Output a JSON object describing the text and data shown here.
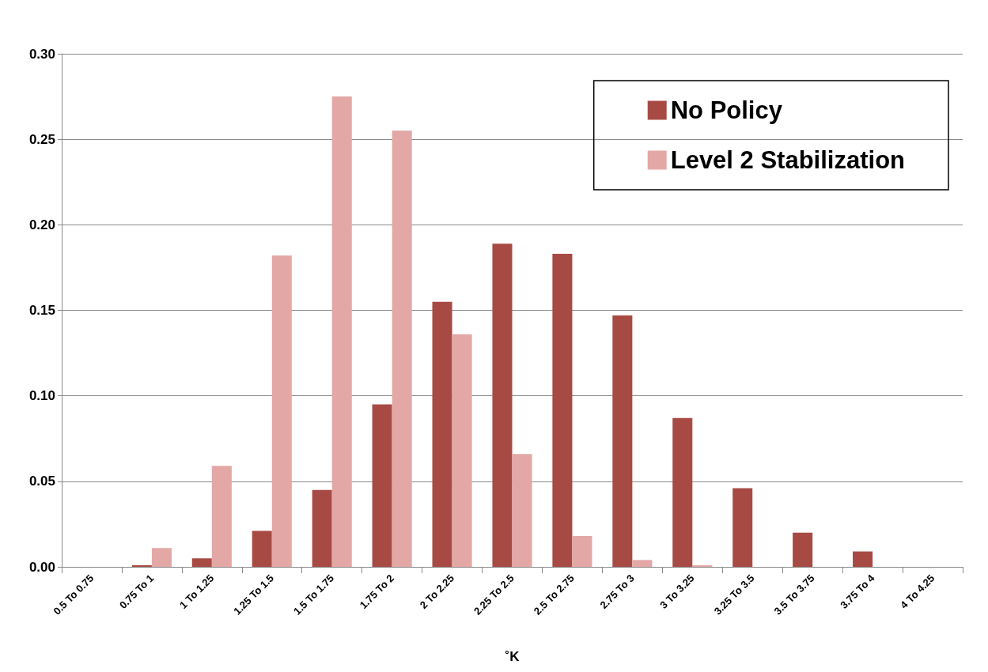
{
  "chart_data": {
    "type": "bar",
    "xlabel": "˚K",
    "categories": [
      "0.5 To 0.75",
      "0.75 To 1",
      "1 To 1.25",
      "1.25 To 1.5",
      "1.5 To 1.75",
      "1.75 To 2",
      "2 To 2.25",
      "2.25 To 2.5",
      "2.5 To 2.75",
      "2.75 To 3",
      "3 To 3.25",
      "3.25 To 3.5",
      "3.5 To 3.75",
      "3.75 To 4",
      "4 To 4.25"
    ],
    "series": [
      {
        "name": "No Policy",
        "color": "#a84a44",
        "values": [
          0,
          0.001,
          0.005,
          0.021,
          0.045,
          0.095,
          0.155,
          0.189,
          0.183,
          0.147,
          0.087,
          0.046,
          0.02,
          0.009,
          0
        ]
      },
      {
        "name": "Level 2 Stabilization",
        "color": "#e3a8a6",
        "values": [
          0,
          0.011,
          0.059,
          0.182,
          0.275,
          0.255,
          0.136,
          0.066,
          0.018,
          0.004,
          0.001,
          0,
          0,
          0,
          0
        ]
      }
    ],
    "ylim": [
      0,
      0.3
    ],
    "yticks": [
      {
        "value": 0,
        "label": "0.00"
      },
      0.05,
      {
        "value": 0.1,
        "label": "0.10"
      },
      0.15,
      {
        "value": 0.2,
        "label": "0.20"
      },
      0.25,
      {
        "value": 0.3,
        "label": "0.30"
      }
    ],
    "grid": "y",
    "legend": "top right"
  }
}
